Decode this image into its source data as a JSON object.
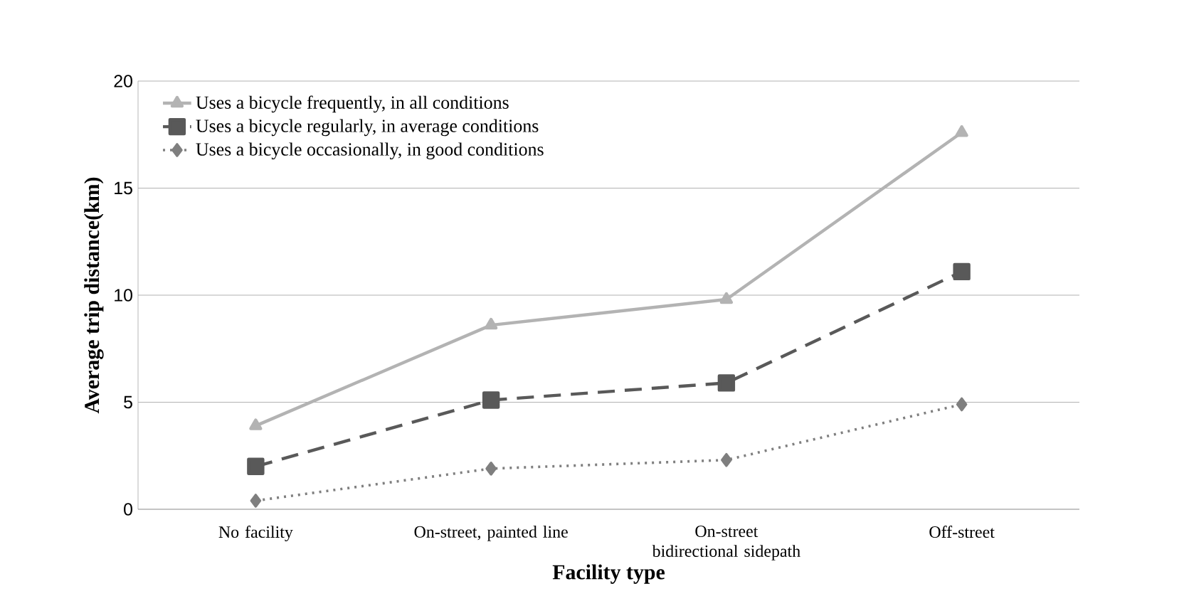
{
  "chart_data": {
    "type": "line",
    "xlabel": "Facility type",
    "ylabel": "Average trip distance(km)",
    "categories": [
      "No facility",
      "On-street, painted line",
      "On-street bidirectional sidepath",
      "Off-street"
    ],
    "series": [
      {
        "name": "Uses a bicycle frequently, in all conditions",
        "color": "#b3b3b3",
        "values": [
          3.9,
          8.6,
          9.8,
          17.6
        ],
        "marker": "triangle",
        "line_style": "solid"
      },
      {
        "name": "Uses a bicycle regularly, in average conditions",
        "color": "#595959",
        "values": [
          2.0,
          5.1,
          5.9,
          11.1
        ],
        "marker": "square",
        "line_style": "dashed"
      },
      {
        "name": "Uses a bicycle occasionally, in good conditions",
        "color": "#7f7f7f",
        "values": [
          0.4,
          1.9,
          2.3,
          4.9
        ],
        "marker": "diamond",
        "line_style": "dotted"
      }
    ],
    "ylim": [
      0,
      20
    ],
    "yticks": [
      0,
      5,
      10,
      15,
      20
    ],
    "grid": "y",
    "legend": "top left"
  }
}
